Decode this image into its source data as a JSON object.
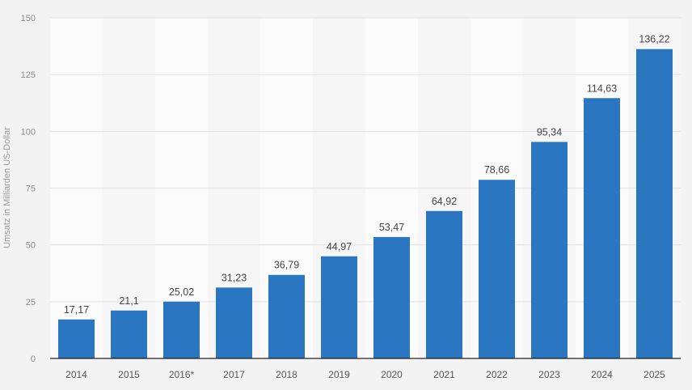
{
  "chart_data": {
    "type": "bar",
    "categories": [
      "2014",
      "2015",
      "2016*",
      "2017",
      "2018",
      "2019",
      "2020",
      "2021",
      "2022",
      "2023",
      "2024",
      "2025"
    ],
    "values": [
      17.17,
      21.1,
      25.02,
      31.23,
      36.79,
      44.97,
      53.47,
      64.92,
      78.66,
      95.34,
      114.63,
      136.22
    ],
    "data_labels": [
      "17,17",
      "21,1",
      "25,02",
      "31,23",
      "36,79",
      "44,97",
      "53,47",
      "64,92",
      "78,66",
      "95,34",
      "114,63",
      "136,22"
    ],
    "title": "",
    "xlabel": "",
    "ylabel": "Umsatz in Milliarden US-Dollar",
    "ylim": [
      0,
      150
    ],
    "yticks": [
      0,
      25,
      50,
      75,
      100,
      125,
      150
    ],
    "grid": true,
    "legend": "none",
    "bar_color": "#2a76c0"
  }
}
